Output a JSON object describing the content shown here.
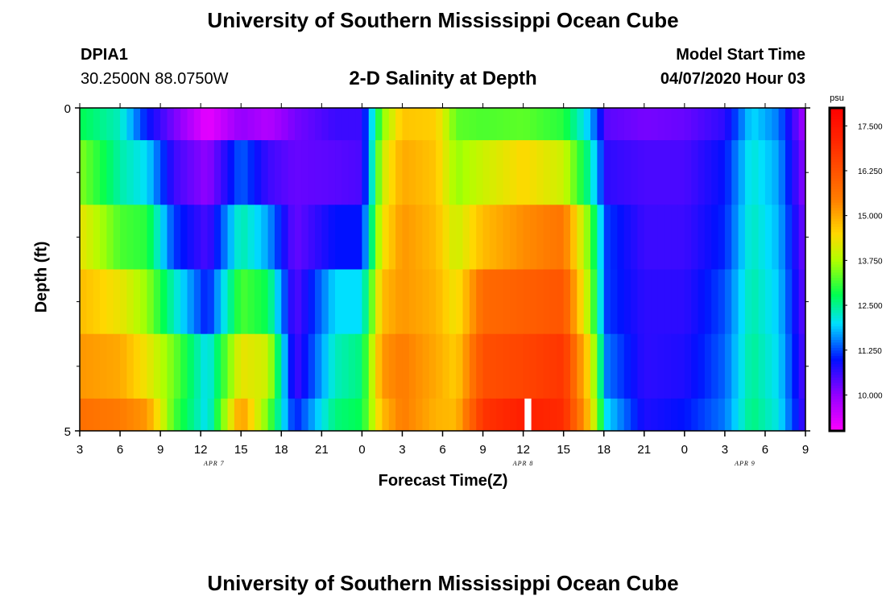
{
  "page": {
    "top_title": "University of Southern Mississippi Ocean Cube",
    "bottom_title": "University of Southern Mississippi Ocean Cube",
    "station_id": "DPIA1",
    "station_coords": "30.2500N 88.0750W",
    "model_start_label": "Model Start Time",
    "model_start_value": "04/07/2020 Hour 03"
  },
  "chart_data": {
    "type": "heatmap",
    "title": "2-D Salinity at Depth",
    "xlabel": "Forecast Time(Z)",
    "ylabel": "Depth (ft)",
    "ylim": [
      0,
      5
    ],
    "y_tick_labels": [
      {
        "value": 0,
        "label": "0"
      },
      {
        "value": 5,
        "label": "5"
      }
    ],
    "y_minor_ticks": [
      1,
      2,
      3,
      4
    ],
    "xlim": [
      3,
      57
    ],
    "x_ticks": [
      {
        "hour": 3,
        "label": "3"
      },
      {
        "hour": 6,
        "label": "6"
      },
      {
        "hour": 9,
        "label": "9"
      },
      {
        "hour": 12,
        "label": "12"
      },
      {
        "hour": 15,
        "label": "15"
      },
      {
        "hour": 18,
        "label": "18"
      },
      {
        "hour": 21,
        "label": "21"
      },
      {
        "hour": 24,
        "label": "0"
      },
      {
        "hour": 27,
        "label": "3"
      },
      {
        "hour": 30,
        "label": "6"
      },
      {
        "hour": 33,
        "label": "9"
      },
      {
        "hour": 36,
        "label": "12"
      },
      {
        "hour": 39,
        "label": "15"
      },
      {
        "hour": 42,
        "label": "18"
      },
      {
        "hour": 45,
        "label": "21"
      },
      {
        "hour": 48,
        "label": "0"
      },
      {
        "hour": 51,
        "label": "3"
      },
      {
        "hour": 54,
        "label": "6"
      },
      {
        "hour": 57,
        "label": "9"
      }
    ],
    "date_labels": [
      {
        "hour": 13,
        "label": "APR 7"
      },
      {
        "hour": 36,
        "label": "APR 8"
      },
      {
        "hour": 52.5,
        "label": "APR 9"
      }
    ],
    "colorbar": {
      "unit": "psu",
      "min": 9.0,
      "max": 18.0,
      "ticks": [
        "10.000",
        "11.250",
        "12.500",
        "13.750",
        "15.000",
        "16.250",
        "17.500"
      ],
      "stops": [
        {
          "v": 9.0,
          "c": "#ff00ff"
        },
        {
          "v": 10.0,
          "c": "#9400ff"
        },
        {
          "v": 11.0,
          "c": "#0010ff"
        },
        {
          "v": 12.0,
          "c": "#00e0ff"
        },
        {
          "v": 12.8,
          "c": "#00ff50"
        },
        {
          "v": 13.75,
          "c": "#b0ff00"
        },
        {
          "v": 14.5,
          "c": "#ffd800"
        },
        {
          "v": 15.5,
          "c": "#ff7a00"
        },
        {
          "v": 17.0,
          "c": "#ff2a00"
        },
        {
          "v": 18.0,
          "c": "#ff0000"
        }
      ]
    },
    "depth_layer_boundaries": [
      0,
      0.5,
      1.5,
      2.5,
      3.5,
      4.5,
      5
    ],
    "salinity_profile": [
      {
        "t": 3,
        "v": [
          12.8,
          13.5,
          14.3,
          14.8,
          15.2,
          15.7
        ]
      },
      {
        "t": 6,
        "v": [
          12.3,
          12.4,
          13.2,
          14.3,
          15.0,
          15.5
        ]
      },
      {
        "t": 8,
        "v": [
          11.0,
          12.0,
          13.0,
          13.6,
          14.3,
          15.2
        ]
      },
      {
        "t": 10,
        "v": [
          10.2,
          10.6,
          11.2,
          12.3,
          13.4,
          13.2
        ]
      },
      {
        "t": 12.5,
        "v": [
          9.2,
          10.0,
          10.5,
          11.0,
          12.0,
          12.0
        ]
      },
      {
        "t": 15,
        "v": [
          10.0,
          11.4,
          12.4,
          13.2,
          14.3,
          15.2
        ]
      },
      {
        "t": 17,
        "v": [
          9.7,
          10.6,
          11.7,
          12.8,
          14.0,
          13.4
        ]
      },
      {
        "t": 19,
        "v": [
          10.2,
          10.3,
          10.3,
          10.4,
          10.5,
          11.0
        ]
      },
      {
        "t": 22,
        "v": [
          10.6,
          10.4,
          11.0,
          12.0,
          12.3,
          12.6
        ]
      },
      {
        "t": 24,
        "v": [
          10.6,
          10.5,
          11.0,
          12.0,
          12.6,
          12.8
        ]
      },
      {
        "t": 25.5,
        "v": [
          13.5,
          14.0,
          14.3,
          14.8,
          15.2,
          14.8
        ]
      },
      {
        "t": 27,
        "v": [
          14.7,
          15.0,
          15.2,
          15.2,
          15.5,
          15.5
        ]
      },
      {
        "t": 29.5,
        "v": [
          14.6,
          14.7,
          14.8,
          14.9,
          15.0,
          14.9
        ]
      },
      {
        "t": 31,
        "v": [
          13.3,
          13.6,
          14.0,
          14.3,
          14.6,
          14.8
        ]
      },
      {
        "t": 33,
        "v": [
          13.2,
          14.0,
          14.8,
          15.8,
          16.3,
          16.8
        ]
      },
      {
        "t": 36,
        "v": [
          13.3,
          14.5,
          15.3,
          16.0,
          16.5,
          17.3
        ]
      },
      {
        "t": 39,
        "v": [
          13.0,
          14.0,
          15.6,
          16.2,
          16.8,
          17.0
        ]
      },
      {
        "t": 41,
        "v": [
          11.8,
          12.4,
          13.3,
          13.6,
          14.3,
          14.6
        ]
      },
      {
        "t": 42.2,
        "v": [
          10.4,
          10.7,
          11.2,
          11.2,
          11.5,
          12.0
        ]
      },
      {
        "t": 45,
        "v": [
          10.2,
          10.5,
          10.6,
          10.7,
          10.7,
          10.8
        ]
      },
      {
        "t": 48,
        "v": [
          10.3,
          10.5,
          10.6,
          10.7,
          10.8,
          11.0
        ]
      },
      {
        "t": 51,
        "v": [
          10.7,
          11.0,
          11.1,
          11.3,
          11.4,
          11.5
        ]
      },
      {
        "t": 53,
        "v": [
          12.0,
          12.2,
          12.3,
          12.4,
          12.5,
          12.6
        ]
      },
      {
        "t": 55,
        "v": [
          11.5,
          11.7,
          11.8,
          11.9,
          12.0,
          12.1
        ]
      },
      {
        "t": 57,
        "v": [
          9.8,
          10.0,
          10.2,
          10.3,
          10.4,
          10.5
        ]
      }
    ],
    "missing_data": [
      {
        "t_start": 36.1,
        "t_end": 36.6,
        "depth_start": 4.5,
        "depth_end": 5
      }
    ]
  }
}
